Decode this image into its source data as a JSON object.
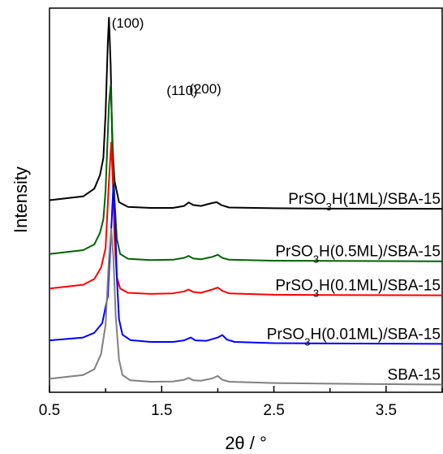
{
  "chart_data": {
    "type": "line",
    "xlabel": "2θ / °",
    "ylabel": "Intensity",
    "xlim": [
      0.5,
      4.0
    ],
    "xticks": [
      "0.5",
      "1.5",
      "2.5",
      "3.5"
    ],
    "xtick_values": [
      0.5,
      1.5,
      2.5,
      3.5
    ],
    "y_scale": "arbitrary units, vertically offset stacked patterns",
    "grid": false,
    "legend": "none (series labelled inline)",
    "peak_annotations": [
      {
        "text": "(100)",
        "x": 1.03
      },
      {
        "text": "(110)",
        "x": 1.74
      },
      {
        "text": "(200)",
        "x": 1.99
      }
    ],
    "series": [
      {
        "name": "PrSO3H(1ML)/SBA-15",
        "label_main": "PrSO",
        "label_sub": "3",
        "label_tail": "H(1ML)/SBA-15",
        "color": "#000000",
        "baseline": 0.955,
        "points": [
          [
            0.5,
            1.0
          ],
          [
            0.8,
            1.02
          ],
          [
            0.9,
            1.06
          ],
          [
            0.95,
            1.13
          ],
          [
            0.98,
            1.22
          ],
          [
            1.0,
            1.45
          ],
          [
            1.02,
            1.82
          ],
          [
            1.03,
            1.95
          ],
          [
            1.045,
            1.7
          ],
          [
            1.06,
            1.3
          ],
          [
            1.08,
            1.1
          ],
          [
            1.12,
            0.99
          ],
          [
            1.2,
            0.965
          ],
          [
            1.4,
            0.96
          ],
          [
            1.6,
            0.96
          ],
          [
            1.7,
            0.97
          ],
          [
            1.74,
            0.988
          ],
          [
            1.78,
            0.975
          ],
          [
            1.85,
            0.97
          ],
          [
            1.95,
            0.985
          ],
          [
            1.99,
            0.99
          ],
          [
            2.03,
            0.975
          ],
          [
            2.1,
            0.962
          ],
          [
            2.5,
            0.958
          ],
          [
            3.0,
            0.956
          ],
          [
            4.0,
            0.955
          ]
        ]
      },
      {
        "name": "PrSO3H(0.5ML)/SBA-15",
        "label_main": "PrSO",
        "label_sub": "3",
        "label_tail": "H(0.5ML)/SBA-15",
        "color": "#006400",
        "baseline": 0.682,
        "points": [
          [
            0.5,
            0.72
          ],
          [
            0.8,
            0.74
          ],
          [
            0.9,
            0.77
          ],
          [
            0.95,
            0.83
          ],
          [
            0.98,
            0.9
          ],
          [
            1.0,
            1.05
          ],
          [
            1.03,
            1.5
          ],
          [
            1.045,
            1.6
          ],
          [
            1.06,
            1.35
          ],
          [
            1.08,
            1.0
          ],
          [
            1.1,
            0.8
          ],
          [
            1.13,
            0.72
          ],
          [
            1.2,
            0.695
          ],
          [
            1.4,
            0.688
          ],
          [
            1.6,
            0.69
          ],
          [
            1.7,
            0.7
          ],
          [
            1.74,
            0.71
          ],
          [
            1.78,
            0.697
          ],
          [
            1.85,
            0.692
          ],
          [
            1.95,
            0.705
          ],
          [
            2.0,
            0.716
          ],
          [
            2.04,
            0.7
          ],
          [
            2.1,
            0.69
          ],
          [
            2.5,
            0.685
          ],
          [
            3.0,
            0.684
          ],
          [
            4.0,
            0.682
          ]
        ]
      },
      {
        "name": "PrSO3H(0.1ML)/SBA-15",
        "label_main": "PrSO",
        "label_sub": "3",
        "label_tail": "H(0.1ML)/SBA-15",
        "color": "#ff0000",
        "baseline": 0.505,
        "points": [
          [
            0.5,
            0.54
          ],
          [
            0.8,
            0.56
          ],
          [
            0.9,
            0.59
          ],
          [
            0.96,
            0.65
          ],
          [
            1.0,
            0.75
          ],
          [
            1.03,
            1.1
          ],
          [
            1.05,
            1.3
          ],
          [
            1.065,
            1.1
          ],
          [
            1.08,
            0.8
          ],
          [
            1.1,
            0.6
          ],
          [
            1.13,
            0.54
          ],
          [
            1.2,
            0.518
          ],
          [
            1.4,
            0.512
          ],
          [
            1.6,
            0.515
          ],
          [
            1.7,
            0.525
          ],
          [
            1.74,
            0.535
          ],
          [
            1.78,
            0.522
          ],
          [
            1.85,
            0.518
          ],
          [
            1.95,
            0.535
          ],
          [
            2.0,
            0.545
          ],
          [
            2.04,
            0.528
          ],
          [
            2.1,
            0.515
          ],
          [
            2.5,
            0.508
          ],
          [
            3.0,
            0.506
          ],
          [
            4.0,
            0.505
          ]
        ]
      },
      {
        "name": "PrSO3H(0.01ML)/SBA-15",
        "label_main": "PrSO",
        "label_sub": "3",
        "label_tail": "H(0.01ML)/SBA-15",
        "color": "#0000ff",
        "baseline": 0.252,
        "points": [
          [
            0.5,
            0.27
          ],
          [
            0.8,
            0.285
          ],
          [
            0.9,
            0.31
          ],
          [
            0.97,
            0.36
          ],
          [
            1.02,
            0.5
          ],
          [
            1.05,
            0.85
          ],
          [
            1.07,
            1.08
          ],
          [
            1.085,
            0.9
          ],
          [
            1.1,
            0.6
          ],
          [
            1.12,
            0.38
          ],
          [
            1.15,
            0.3
          ],
          [
            1.22,
            0.272
          ],
          [
            1.4,
            0.262
          ],
          [
            1.6,
            0.262
          ],
          [
            1.7,
            0.27
          ],
          [
            1.76,
            0.285
          ],
          [
            1.8,
            0.27
          ],
          [
            1.9,
            0.268
          ],
          [
            2.0,
            0.285
          ],
          [
            2.04,
            0.298
          ],
          [
            2.08,
            0.275
          ],
          [
            2.15,
            0.262
          ],
          [
            2.5,
            0.256
          ],
          [
            3.0,
            0.254
          ],
          [
            4.0,
            0.252
          ]
        ]
      },
      {
        "name": "SBA-15",
        "label_main": "SBA-15",
        "label_sub": "",
        "label_tail": "",
        "color": "#808080",
        "baseline": 0.04,
        "points": [
          [
            0.5,
            0.07
          ],
          [
            0.8,
            0.09
          ],
          [
            0.9,
            0.12
          ],
          [
            0.96,
            0.2
          ],
          [
            1.0,
            0.35
          ],
          [
            1.03,
            0.7
          ],
          [
            1.05,
            0.85
          ],
          [
            1.07,
            0.7
          ],
          [
            1.09,
            0.4
          ],
          [
            1.12,
            0.17
          ],
          [
            1.15,
            0.09
          ],
          [
            1.22,
            0.062
          ],
          [
            1.4,
            0.055
          ],
          [
            1.6,
            0.056
          ],
          [
            1.7,
            0.065
          ],
          [
            1.74,
            0.075
          ],
          [
            1.78,
            0.062
          ],
          [
            1.85,
            0.06
          ],
          [
            1.95,
            0.072
          ],
          [
            2.0,
            0.085
          ],
          [
            2.04,
            0.065
          ],
          [
            2.1,
            0.055
          ],
          [
            2.5,
            0.048
          ],
          [
            3.0,
            0.045
          ],
          [
            4.0,
            0.04
          ]
        ]
      }
    ]
  }
}
